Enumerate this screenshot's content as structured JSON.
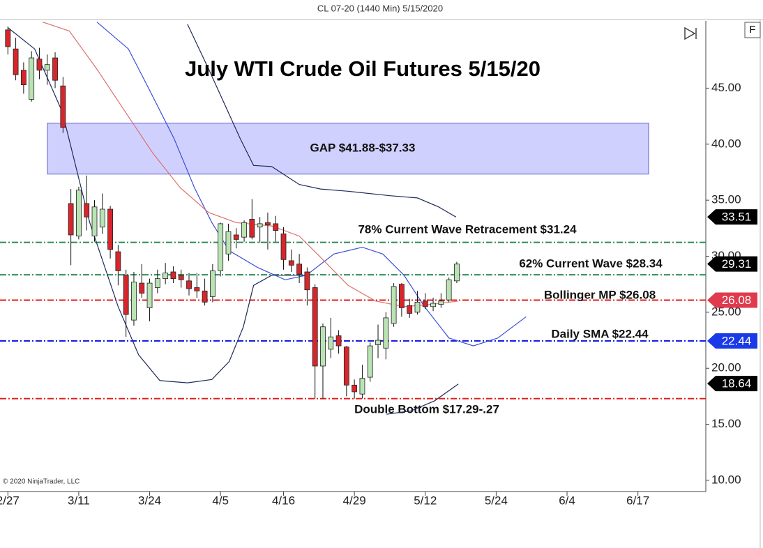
{
  "chart_data": {
    "type": "candlestick",
    "header": "CL 07-20 (1440 Min)  5/15/2020",
    "title": "July WTI Crude Oil Futures 5/15/20",
    "copyright": "© 2020 NinjaTrader, LLC",
    "up_color": "#b9e3b3",
    "down_color": "#d7262b",
    "x": [
      0,
      1,
      2,
      3,
      4,
      5,
      6,
      7,
      8,
      9,
      10,
      11,
      12,
      13,
      14,
      15,
      16,
      17,
      18,
      19,
      20,
      21,
      22,
      23,
      24,
      25,
      26,
      27,
      28,
      29,
      30,
      31,
      32,
      33,
      34,
      35,
      36,
      37,
      38,
      39,
      40,
      41,
      42,
      43,
      44,
      45,
      46,
      47,
      48,
      49,
      50,
      51,
      52,
      53,
      54,
      55,
      56,
      57
    ],
    "open": [
      50.2,
      48.5,
      46.6,
      44.0,
      47.6,
      46.6,
      47.7,
      45.2,
      34.7,
      31.8,
      34.7,
      31.8,
      32.6,
      34.2,
      30.4,
      28.3,
      24.3,
      27.6,
      25.4,
      27.2,
      28.0,
      28.6,
      28.3,
      27.8,
      27.2,
      26.9,
      26.4,
      28.7,
      30.2,
      31.9,
      31.7,
      33.3,
      32.6,
      33.0,
      32.9,
      32.0,
      29.6,
      29.3,
      28.6,
      27.2,
      20.2,
      21.7,
      22.9,
      21.9,
      18.5,
      17.7,
      19.2,
      22.1,
      21.8,
      24.0,
      27.5,
      25.6,
      25.0,
      26.0,
      25.5,
      25.7,
      26.1,
      27.8
    ],
    "high": [
      50.5,
      49.5,
      47.3,
      48.3,
      48.6,
      48.0,
      48.2,
      46.0,
      36.0,
      36.2,
      37.2,
      35.0,
      35.6,
      34.5,
      31.0,
      28.8,
      28.6,
      29.3,
      28.0,
      28.8,
      29.4,
      29.1,
      28.8,
      28.5,
      28.5,
      28.0,
      29.3,
      33.0,
      32.9,
      32.5,
      33.2,
      35.1,
      33.5,
      33.9,
      33.6,
      32.6,
      30.6,
      30.2,
      29.0,
      27.5,
      24.0,
      24.5,
      23.4,
      22.0,
      19.0,
      20.3,
      22.3,
      23.9,
      25.0,
      27.6,
      27.6,
      26.2,
      26.9,
      26.7,
      26.3,
      26.7,
      28.1,
      29.5
    ],
    "low": [
      48.0,
      45.7,
      44.5,
      43.8,
      45.8,
      45.3,
      45.0,
      41.0,
      29.2,
      31.5,
      32.3,
      31.3,
      32.0,
      29.8,
      27.4,
      22.8,
      23.8,
      26.3,
      24.2,
      26.7,
      27.5,
      27.6,
      27.2,
      26.5,
      26.3,
      25.6,
      25.9,
      28.2,
      29.6,
      30.7,
      31.3,
      31.5,
      31.2,
      30.6,
      31.3,
      28.8,
      28.6,
      27.6,
      25.6,
      17.3,
      17.3,
      20.9,
      21.3,
      17.5,
      17.3,
      17.3,
      18.8,
      20.9,
      20.8,
      23.7,
      24.6,
      24.5,
      24.8,
      25.3,
      25.1,
      25.4,
      25.9,
      27.6
    ],
    "close": [
      48.7,
      46.2,
      45.3,
      47.7,
      46.6,
      47.1,
      45.7,
      41.5,
      31.9,
      35.9,
      33.5,
      34.4,
      34.2,
      30.6,
      28.7,
      24.8,
      27.7,
      26.7,
      27.6,
      28.0,
      28.5,
      28.0,
      27.9,
      27.1,
      26.9,
      25.9,
      28.7,
      32.9,
      32.2,
      31.5,
      33.0,
      31.7,
      32.9,
      32.8,
      32.3,
      29.7,
      29.2,
      28.4,
      27.0,
      20.2,
      23.7,
      22.8,
      22.0,
      18.5,
      17.9,
      19.1,
      22.0,
      22.5,
      24.5,
      27.3,
      25.4,
      24.9,
      25.9,
      25.5,
      25.8,
      26.0,
      27.9,
      29.3
    ],
    "overlays": [
      {
        "color": "#1f2a5a",
        "x": [
          22.8,
          25.5,
          29.5,
          31.2,
          33.5,
          37,
          39.7,
          43.2,
          48.5,
          52,
          54.7,
          56.9
        ],
        "values": [
          50.7,
          46.7,
          40.5,
          38.1,
          38.0,
          36.4,
          36.0,
          35.8,
          35.4,
          35.2,
          34.4,
          33.5
        ]
      },
      {
        "color": "#1f2a5a",
        "x": [
          0,
          3.4,
          6.9,
          10.4,
          14.0,
          16.6,
          19.3,
          22.8,
          25.9,
          28.1,
          29.9,
          31.2,
          33.5,
          37.9
        ],
        "values": [
          50.4,
          48.5,
          42.9,
          33.0,
          25.5,
          21.2,
          18.9,
          18.7,
          19.0,
          20.6,
          23.7,
          27.4,
          28.3,
          28.3
        ]
      },
      {
        "color": "#1f2a5a",
        "x": [
          48.1,
          51.2,
          54.2,
          57.2
        ],
        "values": [
          15.9,
          16.2,
          17.1,
          18.6
        ]
      },
      {
        "color": "#3b4fd6",
        "x": [
          11.3,
          15.3,
          18,
          21.1,
          23.7,
          25.9,
          28.1,
          31.7,
          35.2,
          37.9,
          41.4,
          45,
          47.6,
          50.3,
          52.9,
          56,
          59.1,
          62.2,
          65.8
        ],
        "values": [
          50.9,
          48.5,
          44.8,
          40.5,
          36.1,
          33.0,
          30.5,
          29.0,
          27.9,
          28.3,
          30.2,
          30.8,
          30.2,
          28.3,
          25.5,
          22.7,
          22.0,
          22.7,
          24.6
        ]
      },
      {
        "color": "#d9726f",
        "x": [
          4.4,
          7.8,
          11.3,
          14.9,
          18.4,
          21.9,
          25.5,
          29,
          33.5,
          37,
          39.7,
          43.2,
          46.7,
          50.3,
          53.8,
          57.2
        ],
        "values": [
          50.9,
          50.1,
          46.7,
          42.9,
          39.2,
          36.1,
          33.9,
          33.0,
          32.7,
          31.8,
          29.9,
          27.4,
          26.0,
          25.5,
          25.7,
          26.0
        ]
      }
    ],
    "gap": {
      "label": "GAP $41.88-$37.33",
      "high": 41.88,
      "low": 37.33,
      "color": "#c8c8ff"
    },
    "levels": [
      {
        "value": 31.24,
        "color": "#2e8b57",
        "label": "78% Current Wave Retracement $31.24"
      },
      {
        "value": 28.34,
        "color": "#2e8b57",
        "label": "62% Current Wave $28.34"
      },
      {
        "value": 26.08,
        "color": "#e0201c",
        "label": "Bollinger MP $26.08"
      },
      {
        "value": 22.44,
        "color": "#1a1ae0",
        "label": "Daily SMA $22.44"
      },
      {
        "value": 17.29,
        "color": "#e0201c",
        "label": "Double Bottom $17.29-.27"
      }
    ],
    "price_markers": [
      {
        "value": 33.51,
        "color": "#000000"
      },
      {
        "value": 29.31,
        "color": "#000000"
      },
      {
        "value": 26.08,
        "color": "#e03a4e"
      },
      {
        "value": 22.44,
        "color": "#1a3ae8"
      },
      {
        "value": 18.64,
        "color": "#000000"
      }
    ],
    "xlim": [
      -1,
      88
    ],
    "ylim": [
      9,
      51
    ],
    "xticks": [
      {
        "value": 0,
        "label": "2/27"
      },
      {
        "value": 9,
        "label": "3/11"
      },
      {
        "value": 18,
        "label": "3/24"
      },
      {
        "value": 27,
        "label": "4/5"
      },
      {
        "value": 35,
        "label": "4/16"
      },
      {
        "value": 44,
        "label": "4/29"
      },
      {
        "value": 53,
        "label": "5/12"
      },
      {
        "value": 62,
        "label": "5/24"
      },
      {
        "value": 71,
        "label": "6/4"
      },
      {
        "value": 80,
        "label": "6/17"
      }
    ],
    "yticks": [
      {
        "value": 10,
        "label": "10.00"
      },
      {
        "value": 15,
        "label": "15.00"
      },
      {
        "value": 20,
        "label": "20.00"
      },
      {
        "value": 25,
        "label": "25.00"
      },
      {
        "value": 30,
        "label": "30.00"
      },
      {
        "value": 35,
        "label": "35.00"
      },
      {
        "value": 40,
        "label": "40.00"
      },
      {
        "value": 45,
        "label": "45.00"
      }
    ]
  }
}
